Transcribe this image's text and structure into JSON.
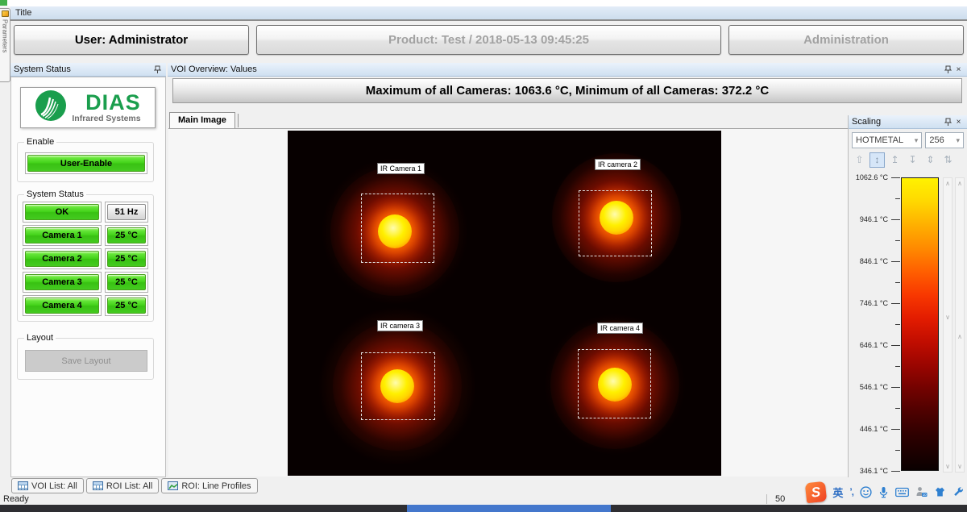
{
  "window": {
    "title": "Title"
  },
  "left_edge": {
    "tab_label": "Parameters"
  },
  "header": {
    "user_button": "User: Administrator",
    "product_button": "Product: Test / 2018-05-13 09:45:25",
    "admin_button": "Administration"
  },
  "system_status_panel": {
    "title": "System Status",
    "logo": {
      "brand": "DIAS",
      "subtitle": "Infrared Systems"
    },
    "enable_group": {
      "label": "Enable",
      "button_label": "User-Enable"
    },
    "status_group": {
      "label": "System Status",
      "rows": [
        {
          "name": "OK",
          "value": "51 Hz"
        },
        {
          "name": "Camera 1",
          "value": "25 °C"
        },
        {
          "name": "Camera 2",
          "value": "25 °C"
        },
        {
          "name": "Camera 3",
          "value": "25 °C"
        },
        {
          "name": "Camera 4",
          "value": "25 °C"
        }
      ]
    },
    "layout_group": {
      "label": "Layout",
      "button_label": "Save Layout"
    }
  },
  "voi_panel": {
    "title": "VOI Overview: Values",
    "summary": "Maximum of all Cameras: 1063.6 °C, Minimum of all Cameras: 372.2 °C",
    "tab_label": "Main Image",
    "camera_labels": [
      "IR Camera 1",
      "IR camera 2",
      "IR camera 3",
      "IR camera 4"
    ]
  },
  "scaling_panel": {
    "title": "Scaling",
    "palette_value": "HOTMETAL",
    "levels_value": "256",
    "scale_labels": [
      "1062.6 °C",
      "946.1 °C",
      "846.1 °C",
      "746.1 °C",
      "646.1 °C",
      "546.1 °C",
      "446.1 °C",
      "346.1 °C"
    ],
    "tool_icons": [
      "⇧",
      "↕",
      "↥",
      "↧",
      "⇕",
      "⇅"
    ]
  },
  "bottom_tabs": [
    {
      "label": "VOI List: All",
      "icon": "table"
    },
    {
      "label": "ROI List: All",
      "icon": "table"
    },
    {
      "label": "ROI: Line Profiles",
      "icon": "line-chart"
    }
  ],
  "status_bar": {
    "ready": "Ready",
    "right_value": "50"
  },
  "ime": {
    "logo": "S",
    "lang": "英",
    "punct": "’,"
  },
  "colors": {
    "status_green": "#40d017",
    "brand_green": "#1a9e4d",
    "panel_header_blue": "#d7e5f3",
    "scale_top": "#fff200",
    "scale_bottom": "#0a0000",
    "taskbar_blue": "#4477cc"
  }
}
